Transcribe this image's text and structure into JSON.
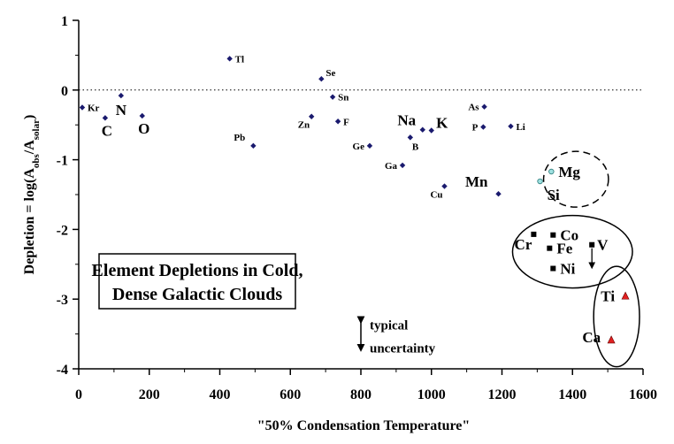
{
  "chart_data": {
    "type": "scatter",
    "title": "Element Depletions in Cold, Dense Galactic Clouds",
    "title_lines": [
      "Element Depletions in Cold,",
      "Dense Galactic Clouds"
    ],
    "xlabel": "\"50% Condensation Temperature\"",
    "ylabel": "Depletion = log(A",
    "ylabel_sub1": "obs",
    "ylabel_mid": "/A",
    "ylabel_sub2": "solar",
    "ylabel_end": ")",
    "xlim": [
      0,
      1600
    ],
    "ylim": [
      -4,
      1
    ],
    "x_ticks": [
      0,
      200,
      400,
      600,
      800,
      1000,
      1200,
      1400,
      1600
    ],
    "y_ticks": [
      1,
      0,
      -1,
      -2,
      -3,
      -4
    ],
    "grid": false,
    "reference_line": {
      "y": 0,
      "style": "dotted"
    },
    "colors": {
      "diamond": "#1a1a6e",
      "circle": "#9ee0e0",
      "triangle": "#e02020",
      "square": "#000000"
    },
    "points": [
      {
        "label": "Kr",
        "x": 10,
        "y": -0.25,
        "marker": "diamond",
        "size": "small",
        "anchor": "right"
      },
      {
        "label": "C",
        "x": 75,
        "y": -0.4,
        "marker": "diamond",
        "size": "large",
        "anchor": "below"
      },
      {
        "label": "N",
        "x": 120,
        "y": -0.08,
        "marker": "diamond",
        "size": "large",
        "anchor": "below"
      },
      {
        "label": "O",
        "x": 180,
        "y": -0.37,
        "marker": "diamond",
        "size": "large",
        "anchor": "below"
      },
      {
        "label": "Tl",
        "x": 428,
        "y": 0.45,
        "marker": "diamond",
        "size": "small",
        "anchor": "right"
      },
      {
        "label": "Pb",
        "x": 495,
        "y": -0.8,
        "marker": "diamond",
        "size": "small",
        "anchor": "above-left"
      },
      {
        "label": "Se",
        "x": 688,
        "y": 0.16,
        "marker": "diamond",
        "size": "small",
        "anchor": "above-right"
      },
      {
        "label": "Sn",
        "x": 720,
        "y": -0.1,
        "marker": "diamond",
        "size": "small",
        "anchor": "right"
      },
      {
        "label": "Zn",
        "x": 660,
        "y": -0.38,
        "marker": "diamond",
        "size": "small",
        "anchor": "below-left"
      },
      {
        "label": "F",
        "x": 735,
        "y": -0.45,
        "marker": "diamond",
        "size": "small",
        "anchor": "right"
      },
      {
        "label": "Ge",
        "x": 825,
        "y": -0.8,
        "marker": "diamond",
        "size": "small",
        "anchor": "left"
      },
      {
        "label": "Ga",
        "x": 918,
        "y": -1.08,
        "marker": "diamond",
        "size": "small",
        "anchor": "left"
      },
      {
        "label": "Na",
        "x": 975,
        "y": -0.57,
        "marker": "diamond",
        "size": "large",
        "anchor": "above-left"
      },
      {
        "label": "K",
        "x": 1000,
        "y": -0.58,
        "marker": "diamond",
        "size": "large",
        "anchor": "above-right"
      },
      {
        "label": "B",
        "x": 940,
        "y": -0.68,
        "marker": "diamond",
        "size": "small",
        "anchor": "below-right"
      },
      {
        "label": "Cu",
        "x": 1037,
        "y": -1.38,
        "marker": "diamond",
        "size": "small",
        "anchor": "below-left"
      },
      {
        "label": "As",
        "x": 1150,
        "y": -0.24,
        "marker": "diamond",
        "size": "small",
        "anchor": "left"
      },
      {
        "label": "P",
        "x": 1147,
        "y": -0.53,
        "marker": "diamond",
        "size": "small",
        "anchor": "left"
      },
      {
        "label": "Li",
        "x": 1225,
        "y": -0.52,
        "marker": "diamond",
        "size": "small",
        "anchor": "right"
      },
      {
        "label": "Mn",
        "x": 1190,
        "y": -1.49,
        "marker": "diamond",
        "size": "large",
        "anchor": "above-left"
      },
      {
        "label": "Mg",
        "x": 1340,
        "y": -1.17,
        "marker": "circle",
        "size": "large",
        "anchor": "right"
      },
      {
        "label": "Si",
        "x": 1308,
        "y": -1.31,
        "marker": "circle",
        "size": "large",
        "anchor": "below-right"
      },
      {
        "label": "Cr",
        "x": 1290,
        "y": -2.07,
        "marker": "square",
        "size": "large",
        "anchor": "below-left"
      },
      {
        "label": "Co",
        "x": 1345,
        "y": -2.08,
        "marker": "square",
        "size": "large",
        "anchor": "right"
      },
      {
        "label": "Fe",
        "x": 1335,
        "y": -2.27,
        "marker": "square",
        "size": "large",
        "anchor": "right"
      },
      {
        "label": "V",
        "x": 1455,
        "y": -2.22,
        "marker": "square",
        "size": "large",
        "anchor": "right"
      },
      {
        "label": "Ni",
        "x": 1345,
        "y": -2.56,
        "marker": "square",
        "size": "large",
        "anchor": "right"
      },
      {
        "label": "Ti",
        "x": 1550,
        "y": -2.95,
        "marker": "triangle",
        "size": "large",
        "anchor": "left"
      },
      {
        "label": "Ca",
        "x": 1510,
        "y": -3.58,
        "marker": "triangle",
        "size": "large",
        "anchor": "left"
      }
    ],
    "v_upper_limit": {
      "x": 1455,
      "y_from": -2.27,
      "y_to": -2.52
    },
    "groups": [
      {
        "name": "Mg-Si",
        "cx": 1410,
        "cy": -1.28,
        "rx": 92,
        "ry": 0.4,
        "dashed": true
      },
      {
        "name": "Fe-peak",
        "cx": 1400,
        "cy": -2.32,
        "rx": 170,
        "ry": 0.52,
        "dashed": false
      },
      {
        "name": "Ti-Ca",
        "cx": 1525,
        "cy": -3.25,
        "rx": 65,
        "ry": 0.72,
        "dashed": false
      }
    ],
    "uncertainty_note": {
      "lines": [
        "typical",
        "uncertainty"
      ],
      "x": 800,
      "y": -3.5,
      "half_range": 0.2
    }
  }
}
